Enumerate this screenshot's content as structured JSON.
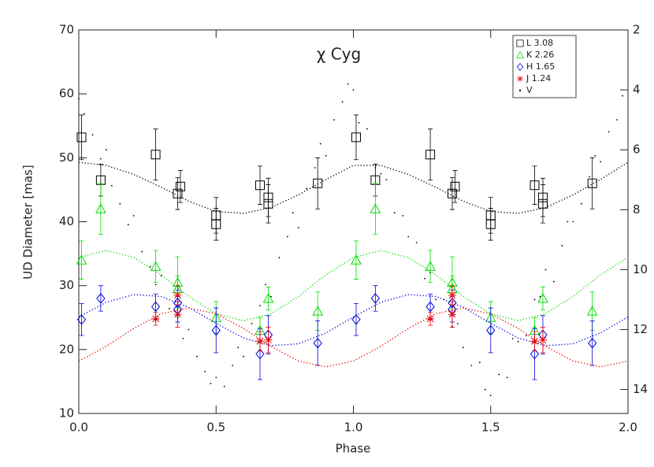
{
  "chart_data": {
    "type": "scatter",
    "title": "χ Cyg",
    "x_label": "Phase",
    "y_label": "UD Diameter [mas]",
    "xlim": [
      0,
      2
    ],
    "xticks": [
      {
        "value": 0,
        "label": "0.0"
      },
      {
        "value": 0.5,
        "label": "0.5"
      },
      {
        "value": 1,
        "label": "1.0"
      },
      {
        "value": 1.5,
        "label": "1.5"
      },
      {
        "value": 2,
        "label": "2.0"
      }
    ],
    "ylim": [
      10,
      70
    ],
    "yticks": [
      10,
      20,
      30,
      40,
      50,
      60,
      70
    ],
    "y2lim": [
      14.8,
      2
    ],
    "y2ticks": [
      2,
      4,
      6,
      8,
      10,
      12,
      14
    ],
    "fit_x": [
      0,
      0.1,
      0.2,
      0.3,
      0.4,
      0.5,
      0.6,
      0.7,
      0.8,
      0.9,
      1,
      1.1,
      1.2,
      1.3,
      1.4,
      1.5,
      1.6,
      1.7,
      1.8,
      1.9,
      2
    ],
    "series": [
      {
        "name": "L 3.08",
        "color": "#000000",
        "marker": "square",
        "x": [
          0.01,
          0.08,
          0.28,
          0.36,
          0.37,
          0.5,
          0.5,
          0.66,
          0.69,
          0.69,
          0.87,
          1.01,
          1.08,
          1.28,
          1.36,
          1.37,
          1.5,
          1.5,
          1.66,
          1.69,
          1.69,
          1.87
        ],
        "values": [
          53.2,
          46.5,
          50.5,
          44.4,
          45.5,
          41.0,
          39.6,
          45.7,
          43.8,
          42.8,
          46.0,
          53.2,
          46.5,
          50.5,
          44.4,
          45.5,
          41.0,
          39.6,
          45.7,
          43.8,
          42.8,
          46.0
        ],
        "errors": [
          3.5,
          2.5,
          4.0,
          2.5,
          2.5,
          2.8,
          2.5,
          3.0,
          3.0,
          3.0,
          4.0,
          3.5,
          2.5,
          4.0,
          2.5,
          2.5,
          2.8,
          2.5,
          3.0,
          3.0,
          3.0,
          4.0
        ],
        "fit_values": [
          49.3,
          48.8,
          47.4,
          45.4,
          43.2,
          41.6,
          41.3,
          42.2,
          44.2,
          46.6,
          48.8,
          48.8,
          47.4,
          45.4,
          43.2,
          41.6,
          41.3,
          42.2,
          44.2,
          46.6,
          49.3
        ]
      },
      {
        "name": "K 2.26",
        "color": "#00dd00",
        "marker": "triangle",
        "x": [
          0.01,
          0.08,
          0.28,
          0.36,
          0.36,
          0.5,
          0.66,
          0.69,
          0.87,
          1.01,
          1.08,
          1.28,
          1.36,
          1.36,
          1.5,
          1.66,
          1.69,
          1.87
        ],
        "values": [
          34.0,
          42.0,
          33.0,
          30.5,
          29.5,
          25.0,
          23.0,
          28.0,
          26.0,
          34.0,
          42.0,
          33.0,
          30.5,
          29.5,
          25.0,
          23.0,
          28.0,
          26.0
        ],
        "errors": [
          3.0,
          4.0,
          2.5,
          4.0,
          2.0,
          2.5,
          2.0,
          1.8,
          3.0,
          3.0,
          4.0,
          2.5,
          4.0,
          2.0,
          2.5,
          2.0,
          1.8,
          3.0
        ],
        "fit_values": [
          34.4,
          35.5,
          34.4,
          31.7,
          28.3,
          25.6,
          24.5,
          25.6,
          28.3,
          31.7,
          34.4,
          35.5,
          34.4,
          31.7,
          28.3,
          25.6,
          24.5,
          25.6,
          28.3,
          31.7,
          34.4
        ]
      },
      {
        "name": "H 1.65",
        "color": "#0000dd",
        "marker": "diamond",
        "x": [
          0.01,
          0.08,
          0.28,
          0.36,
          0.36,
          0.5,
          0.66,
          0.69,
          0.87,
          1.01,
          1.08,
          1.28,
          1.36,
          1.36,
          1.5,
          1.66,
          1.69,
          1.87
        ],
        "values": [
          24.7,
          28.0,
          26.7,
          27.3,
          26.3,
          23.0,
          19.3,
          22.3,
          21.0,
          24.7,
          28.0,
          26.7,
          27.3,
          26.3,
          23.0,
          19.3,
          22.3,
          21.0
        ],
        "errors": [
          2.5,
          2.0,
          2.0,
          2.0,
          2.0,
          3.5,
          4.0,
          3.0,
          3.5,
          2.5,
          2.0,
          2.0,
          2.0,
          2.0,
          3.5,
          4.0,
          3.0,
          3.5
        ],
        "fit_values": [
          25.1,
          27.4,
          28.6,
          28.3,
          26.6,
          24.1,
          21.8,
          20.6,
          20.9,
          22.6,
          25.1,
          27.4,
          28.6,
          28.3,
          26.6,
          24.1,
          21.8,
          20.6,
          20.9,
          22.6,
          25.1
        ]
      },
      {
        "name": "J 1.24",
        "color": "#ee0000",
        "marker": "asterisk",
        "x": [
          0.28,
          0.36,
          0.36,
          0.66,
          0.69,
          1.28,
          1.36,
          1.36,
          1.66,
          1.69
        ],
        "values": [
          24.8,
          25.5,
          28.5,
          21.3,
          21.5,
          24.8,
          25.5,
          28.5,
          21.3,
          21.5
        ],
        "errors": [
          1.0,
          2.0,
          1.5,
          1.5,
          2.0,
          1.0,
          2.0,
          1.5,
          1.5,
          2.0
        ],
        "fit_values": [
          18.2,
          20.5,
          23.3,
          25.6,
          26.5,
          25.6,
          23.3,
          20.5,
          18.2,
          17.3,
          18.2,
          20.5,
          23.3,
          25.6,
          26.5,
          25.6,
          23.3,
          20.5,
          18.2,
          17.3,
          18.2
        ]
      },
      {
        "name": "V",
        "color": "#000000",
        "marker": "dot",
        "axis": "y2",
        "x": [
          0.0,
          0.02,
          0.05,
          0.08,
          0.1,
          0.12,
          0.15,
          0.18,
          0.2,
          0.23,
          0.26,
          0.28,
          0.3,
          0.33,
          0.36,
          0.38,
          0.4,
          0.43,
          0.46,
          0.48,
          0.5,
          0.53,
          0.56,
          0.58,
          0.6,
          0.63,
          0.66,
          0.68,
          0.7,
          0.73,
          0.76,
          0.78,
          0.8,
          0.83,
          0.86,
          0.88,
          0.9,
          0.93,
          0.96,
          0.98,
          1.0,
          1.02,
          1.05,
          1.08,
          1.1,
          1.12,
          1.15,
          1.18,
          1.2,
          1.23,
          1.26,
          1.28,
          1.3,
          1.33,
          1.36,
          1.38,
          1.4,
          1.43,
          1.46,
          1.48,
          1.5,
          1.53,
          1.56,
          1.58,
          1.6,
          1.63,
          1.66,
          1.68,
          1.7,
          1.73,
          1.76,
          1.78,
          1.8,
          1.83,
          1.86,
          1.88,
          1.9,
          1.93,
          1.96,
          1.98
        ],
        "values": [
          4.3,
          4.8,
          5.5,
          6.3,
          6.0,
          7.2,
          7.8,
          8.5,
          8.2,
          9.4,
          9.9,
          10.5,
          10.2,
          11.3,
          11.6,
          12.3,
          12.0,
          12.9,
          13.4,
          13.8,
          13.6,
          13.9,
          13.2,
          12.6,
          12.9,
          11.8,
          11.2,
          10.5,
          10.9,
          9.6,
          8.9,
          8.1,
          8.6,
          7.3,
          6.6,
          5.8,
          6.2,
          5.0,
          4.4,
          3.8,
          4.0,
          5.1,
          5.3,
          6.6,
          6.8,
          7.0,
          8.1,
          8.2,
          8.9,
          9.1,
          10.3,
          10.1,
          11.0,
          11.0,
          11.9,
          11.8,
          12.6,
          13.2,
          13.1,
          14.0,
          14.2,
          13.5,
          13.6,
          12.3,
          12.4,
          12.2,
          11.0,
          10.9,
          10.0,
          10.4,
          9.2,
          8.4,
          8.4,
          7.8,
          6.9,
          6.2,
          6.4,
          5.4,
          5.0,
          4.2
        ]
      }
    ]
  }
}
